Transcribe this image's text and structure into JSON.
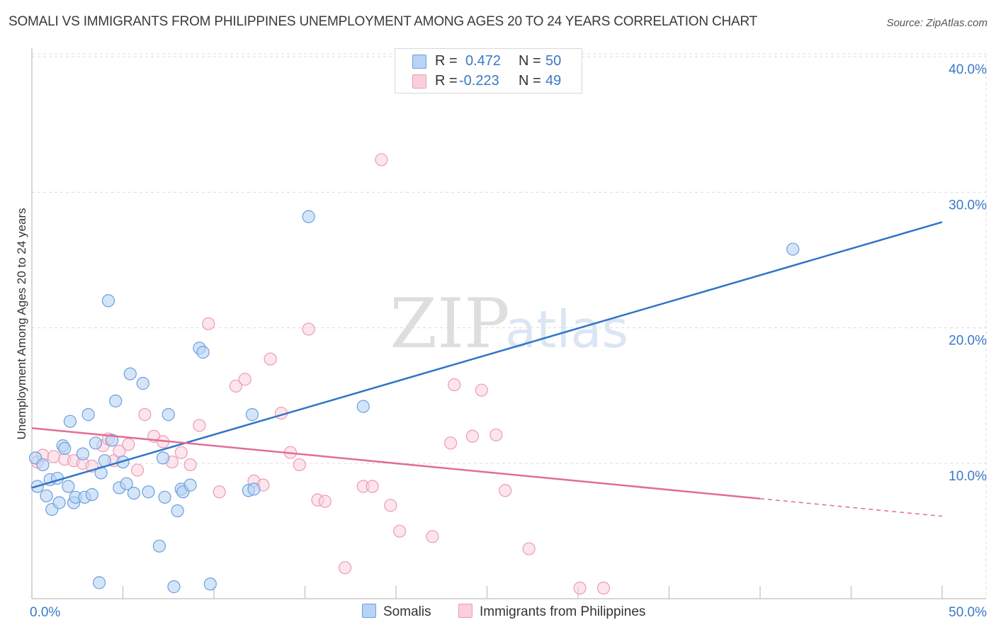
{
  "title": "SOMALI VS IMMIGRANTS FROM PHILIPPINES UNEMPLOYMENT AMONG AGES 20 TO 24 YEARS CORRELATION CHART",
  "source": "Source: ZipAtlas.com",
  "watermark": {
    "zip": "ZIP",
    "atlas": "atlas"
  },
  "legend": {
    "rows": [
      {
        "r_label": "R =",
        "r_value": "0.472",
        "n_label": "N =",
        "n_value": "50"
      },
      {
        "r_label": "R =",
        "r_value": "-0.223",
        "n_label": "N =",
        "n_value": "49"
      }
    ]
  },
  "chart_data": {
    "type": "scatter",
    "ylabel": "Unemployment Among Ages 20 to 24 years",
    "xlabel": "",
    "x_tick_labels": [
      "0.0%",
      "50.0%"
    ],
    "y_tick_labels": [
      "10.0%",
      "20.0%",
      "30.0%",
      "40.0%"
    ],
    "xlim": [
      0,
      50
    ],
    "ylim": [
      0,
      41
    ],
    "grid": true,
    "legend_position": "top-center",
    "series": [
      {
        "name": "Somalis",
        "color": "#6a9fe0",
        "fill": "#b9d3f3",
        "trend": {
          "x": [
            0,
            50
          ],
          "y": [
            8.2,
            27.8
          ],
          "color": "#2f74c8"
        },
        "points": [
          {
            "x": 0.2,
            "y": 10.4
          },
          {
            "x": 0.3,
            "y": 8.3
          },
          {
            "x": 0.6,
            "y": 9.9
          },
          {
            "x": 0.8,
            "y": 7.6
          },
          {
            "x": 1.0,
            "y": 8.8
          },
          {
            "x": 1.1,
            "y": 6.6
          },
          {
            "x": 1.4,
            "y": 8.9
          },
          {
            "x": 1.5,
            "y": 7.1
          },
          {
            "x": 1.7,
            "y": 11.3
          },
          {
            "x": 1.8,
            "y": 11.1
          },
          {
            "x": 2.0,
            "y": 8.3
          },
          {
            "x": 2.1,
            "y": 13.1
          },
          {
            "x": 2.3,
            "y": 7.1
          },
          {
            "x": 2.4,
            "y": 7.5
          },
          {
            "x": 2.8,
            "y": 10.7
          },
          {
            "x": 2.9,
            "y": 7.5
          },
          {
            "x": 3.1,
            "y": 13.6
          },
          {
            "x": 3.3,
            "y": 7.7
          },
          {
            "x": 3.5,
            "y": 11.5
          },
          {
            "x": 3.7,
            "y": 1.2
          },
          {
            "x": 3.8,
            "y": 9.3
          },
          {
            "x": 4.0,
            "y": 10.2
          },
          {
            "x": 4.2,
            "y": 22.0
          },
          {
            "x": 4.4,
            "y": 11.7
          },
          {
            "x": 4.6,
            "y": 14.6
          },
          {
            "x": 4.8,
            "y": 8.2
          },
          {
            "x": 5.0,
            "y": 10.1
          },
          {
            "x": 5.2,
            "y": 8.5
          },
          {
            "x": 5.4,
            "y": 16.6
          },
          {
            "x": 5.6,
            "y": 7.8
          },
          {
            "x": 6.1,
            "y": 15.9
          },
          {
            "x": 6.4,
            "y": 7.9
          },
          {
            "x": 7.0,
            "y": 3.9
          },
          {
            "x": 7.2,
            "y": 10.4
          },
          {
            "x": 7.3,
            "y": 7.5
          },
          {
            "x": 7.5,
            "y": 13.6
          },
          {
            "x": 7.8,
            "y": 0.9
          },
          {
            "x": 8.0,
            "y": 6.5
          },
          {
            "x": 8.2,
            "y": 8.1
          },
          {
            "x": 8.3,
            "y": 7.9
          },
          {
            "x": 8.7,
            "y": 8.4
          },
          {
            "x": 9.2,
            "y": 18.5
          },
          {
            "x": 9.4,
            "y": 18.2
          },
          {
            "x": 9.8,
            "y": 1.1
          },
          {
            "x": 11.9,
            "y": 8.0
          },
          {
            "x": 12.1,
            "y": 13.6
          },
          {
            "x": 12.2,
            "y": 8.1
          },
          {
            "x": 15.2,
            "y": 28.2
          },
          {
            "x": 18.2,
            "y": 14.2
          },
          {
            "x": 41.8,
            "y": 25.8
          }
        ]
      },
      {
        "name": "Immigrants from Philippines",
        "color": "#ee9ab4",
        "fill": "#f9cfdc",
        "trend": {
          "x": [
            0,
            40
          ],
          "y": [
            12.6,
            7.4
          ],
          "dash_to": {
            "x": 50,
            "y": 6.1
          },
          "color": "#e36d95"
        },
        "points": [
          {
            "x": 0.3,
            "y": 10.1
          },
          {
            "x": 0.6,
            "y": 10.6
          },
          {
            "x": 1.2,
            "y": 10.5
          },
          {
            "x": 1.8,
            "y": 10.3
          },
          {
            "x": 2.3,
            "y": 10.2
          },
          {
            "x": 2.8,
            "y": 10.0
          },
          {
            "x": 3.3,
            "y": 9.8
          },
          {
            "x": 3.9,
            "y": 11.3
          },
          {
            "x": 4.2,
            "y": 11.8
          },
          {
            "x": 4.5,
            "y": 10.2
          },
          {
            "x": 4.8,
            "y": 10.9
          },
          {
            "x": 5.3,
            "y": 11.4
          },
          {
            "x": 5.8,
            "y": 9.5
          },
          {
            "x": 6.2,
            "y": 13.6
          },
          {
            "x": 6.7,
            "y": 12.0
          },
          {
            "x": 7.2,
            "y": 11.6
          },
          {
            "x": 7.7,
            "y": 10.1
          },
          {
            "x": 8.2,
            "y": 10.8
          },
          {
            "x": 8.7,
            "y": 9.9
          },
          {
            "x": 9.2,
            "y": 12.8
          },
          {
            "x": 9.7,
            "y": 20.3
          },
          {
            "x": 10.3,
            "y": 7.9
          },
          {
            "x": 11.2,
            "y": 15.7
          },
          {
            "x": 11.7,
            "y": 16.2
          },
          {
            "x": 12.2,
            "y": 8.7
          },
          {
            "x": 12.7,
            "y": 8.4
          },
          {
            "x": 13.1,
            "y": 17.7
          },
          {
            "x": 13.7,
            "y": 13.7
          },
          {
            "x": 14.2,
            "y": 10.8
          },
          {
            "x": 14.7,
            "y": 9.9
          },
          {
            "x": 15.2,
            "y": 19.9
          },
          {
            "x": 15.7,
            "y": 7.3
          },
          {
            "x": 16.1,
            "y": 7.2
          },
          {
            "x": 17.2,
            "y": 2.3
          },
          {
            "x": 18.2,
            "y": 8.3
          },
          {
            "x": 18.7,
            "y": 8.3
          },
          {
            "x": 19.2,
            "y": 32.4
          },
          {
            "x": 19.7,
            "y": 6.9
          },
          {
            "x": 20.2,
            "y": 5.0
          },
          {
            "x": 22.0,
            "y": 4.6
          },
          {
            "x": 23.0,
            "y": 11.5
          },
          {
            "x": 23.2,
            "y": 15.8
          },
          {
            "x": 24.2,
            "y": 12.0
          },
          {
            "x": 24.7,
            "y": 15.4
          },
          {
            "x": 25.5,
            "y": 12.1
          },
          {
            "x": 26.0,
            "y": 8.0
          },
          {
            "x": 27.3,
            "y": 3.7
          },
          {
            "x": 30.1,
            "y": 0.8
          },
          {
            "x": 31.4,
            "y": 0.8
          }
        ]
      }
    ]
  }
}
